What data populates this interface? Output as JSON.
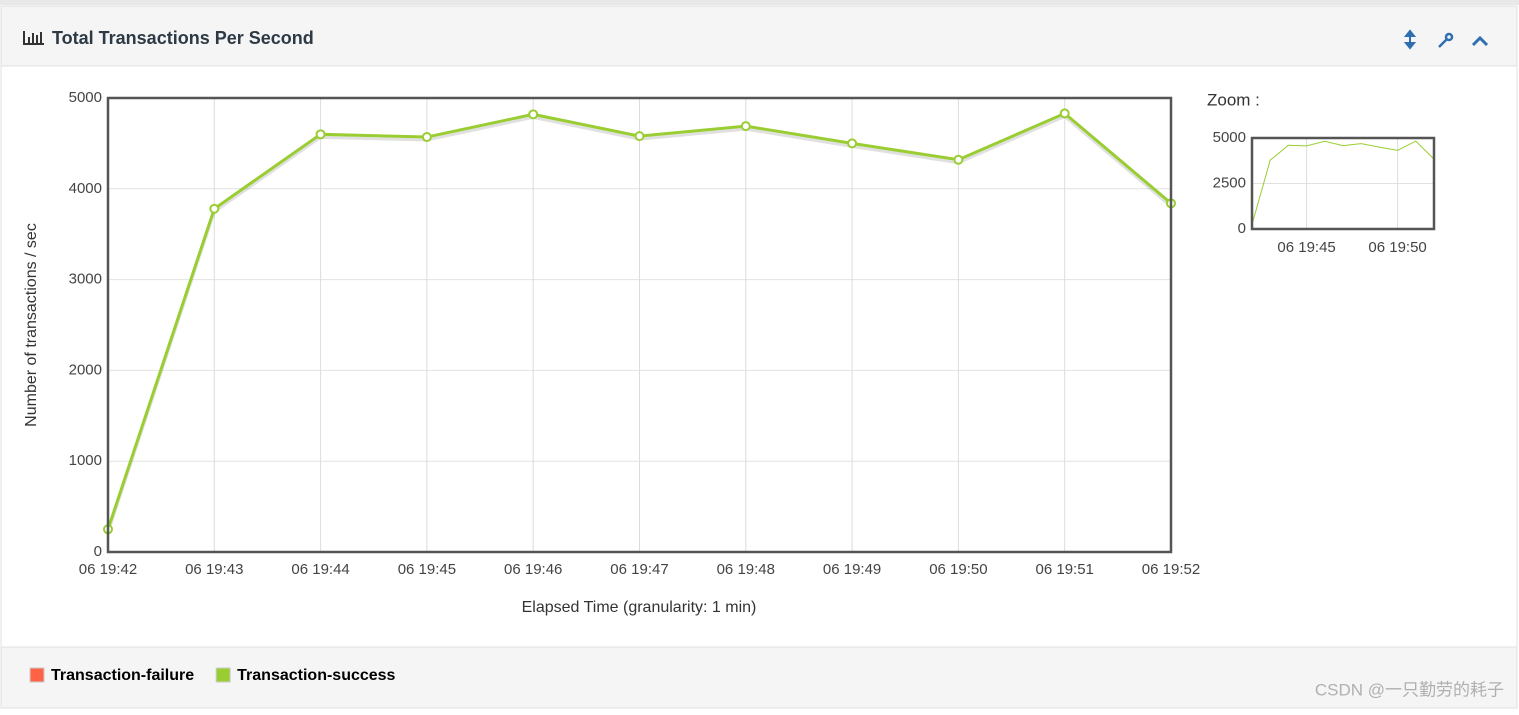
{
  "panel": {
    "title": "Total Transactions Per Second",
    "watermark": "CSDN @一只勤劳的耗子"
  },
  "chart_data": [
    {
      "type": "line",
      "x_label": "Elapsed Time (granularity: 1 min)",
      "y_label": "Number of transactions / sec",
      "categories": [
        "06 19:42",
        "06 19:43",
        "06 19:44",
        "06 19:45",
        "06 19:46",
        "06 19:47",
        "06 19:48",
        "06 19:49",
        "06 19:50",
        "06 19:51",
        "06 19:52"
      ],
      "series": [
        {
          "name": "Transaction-failure",
          "color": "#ff6347",
          "values": [
            null,
            null,
            null,
            null,
            null,
            null,
            null,
            null,
            null,
            null,
            null
          ]
        },
        {
          "name": "Transaction-success",
          "color": "#9acd32",
          "values": [
            250,
            3780,
            4600,
            4570,
            4820,
            4580,
            4690,
            4500,
            4320,
            4830,
            3840
          ]
        }
      ],
      "ylim": [
        0,
        5000
      ],
      "yticks": [
        0,
        1000,
        2000,
        3000,
        4000,
        5000
      ],
      "grid": true,
      "legend": "bottom"
    },
    {
      "type": "line",
      "title": "Zoom :",
      "categories": [
        null,
        null,
        null,
        "06 19:45",
        null,
        null,
        null,
        null,
        "06 19:50",
        null,
        null
      ],
      "ylim": [
        0,
        5000
      ],
      "yticks": [
        0,
        2500,
        5000
      ],
      "grid": true
    }
  ]
}
